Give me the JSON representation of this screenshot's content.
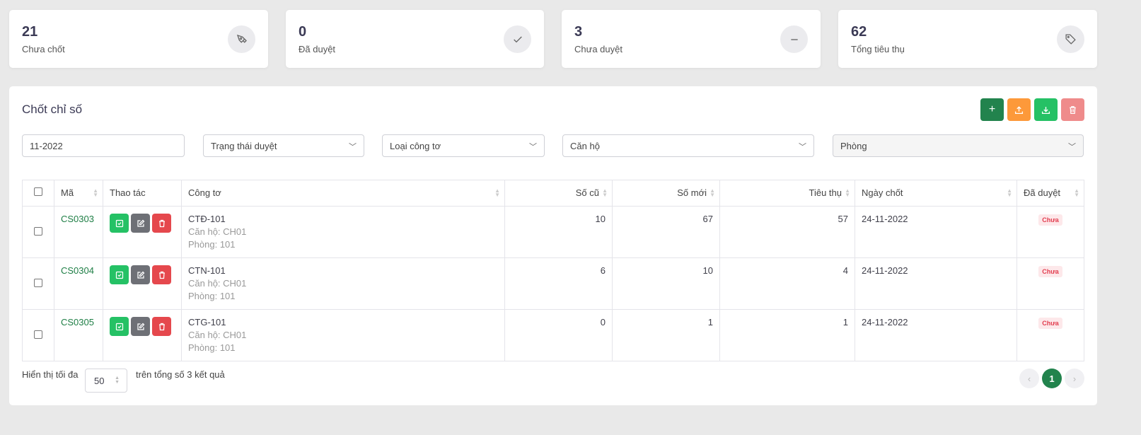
{
  "stats": [
    {
      "value": "21",
      "label": "Chưa chốt",
      "icon": "pen-nib-icon"
    },
    {
      "value": "0",
      "label": "Đã duyệt",
      "icon": "check-icon"
    },
    {
      "value": "3",
      "label": "Chưa duyệt",
      "icon": "minus-icon"
    },
    {
      "value": "62",
      "label": "Tổng tiêu thụ",
      "icon": "tag-icon"
    }
  ],
  "panel": {
    "title": "Chốt chỉ số",
    "toolbar": {
      "add": "+",
      "colors": {
        "add": "#22834d",
        "upload": "#fd993a",
        "download": "#25c165",
        "delete": "#ef8b8b"
      }
    },
    "filters": {
      "period": "11-2022",
      "status": "Trạng thái duyệt",
      "meter_type": "Loại công tơ",
      "apartment": "Căn hộ",
      "room": "Phòng"
    },
    "columns": [
      "Mã",
      "Thao tác",
      "Công tơ",
      "Số cũ",
      "Số mới",
      "Tiêu thụ",
      "Ngày chốt",
      "Đã duyệt"
    ],
    "rows": [
      {
        "code": "CS0303",
        "meter": "CTĐ-101",
        "apartment": "Căn hộ: CH01",
        "room": "Phòng: 101",
        "old": "10",
        "new": "67",
        "usage": "57",
        "date": "24-11-2022",
        "status": "Chưa"
      },
      {
        "code": "CS0304",
        "meter": "CTN-101",
        "apartment": "Căn hộ: CH01",
        "room": "Phòng: 101",
        "old": "6",
        "new": "10",
        "usage": "4",
        "date": "24-11-2022",
        "status": "Chưa"
      },
      {
        "code": "CS0305",
        "meter": "CTG-101",
        "apartment": "Căn hộ: CH01",
        "room": "Phòng: 101",
        "old": "0",
        "new": "1",
        "usage": "1",
        "date": "24-11-2022",
        "status": "Chưa"
      }
    ],
    "footer": {
      "show_label": "Hiển thị tối đa",
      "page_size": "50",
      "total_label": "trên tổng số 3 kết quả",
      "current_page": "1"
    }
  }
}
